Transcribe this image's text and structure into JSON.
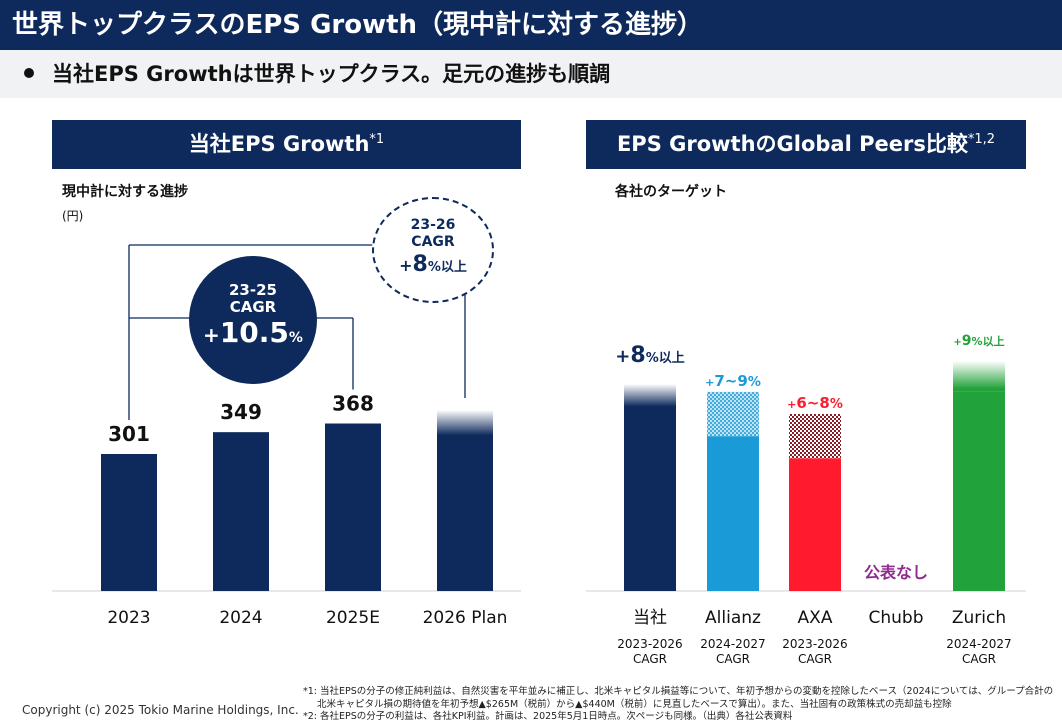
{
  "header": {
    "title": "世界トップクラスのEPS Growth（現中計に対する進捗）",
    "subtitle": "当社EPS Growthは世界トップクラス。足元の進捗も順調"
  },
  "left_panel": {
    "heading": "当社EPS Growth",
    "heading_note": "*1",
    "chart_label": "現中計に対する進捗",
    "unit": "(円)",
    "cagr_23_25": {
      "line1": "23-25",
      "line2": "CAGR",
      "prefix": "+",
      "value": "10.5",
      "suffix": "%"
    },
    "cagr_23_26": {
      "line1": "23-26",
      "line2": "CAGR",
      "prefix": "+",
      "value": "8",
      "suffix": "%以上"
    }
  },
  "right_panel": {
    "heading": "EPS GrowthのGlobal Peers比較",
    "heading_note": "*1,2",
    "chart_label": "各社のターゲット"
  },
  "colors": {
    "navy": "#0e2a5c",
    "allianz": "#1a9ad6",
    "axa": "#ff1a2e",
    "chubb_text": "#8e2b8f",
    "zurich": "#22a23a"
  },
  "chart_data": [
    {
      "type": "bar",
      "title": "",
      "categories": [
        "2023",
        "2024",
        "2025E",
        "2026 Plan"
      ],
      "values": [
        301,
        349,
        368,
        null
      ],
      "value_labels": [
        "301",
        "349",
        "368",
        ""
      ],
      "ylim": [
        0,
        460
      ],
      "plan_bar_faded": true
    },
    {
      "type": "bar",
      "title": "",
      "categories": [
        "当社",
        "Allianz",
        "AXA",
        "Chubb",
        "Zurich"
      ],
      "range_labels": [
        "+8%以上",
        "+7~9%",
        "+6~8%",
        "",
        "+9%以上"
      ],
      "value_min": [
        8,
        7,
        6,
        null,
        9
      ],
      "value_max": [
        null,
        9,
        8,
        null,
        null
      ],
      "periods": [
        "2023-2026",
        "2024-2027",
        "2023-2026",
        "",
        "2024-2027"
      ],
      "period_unit": "CAGR",
      "no_disclosure_label": "公表なし",
      "ylim": [
        0,
        11
      ]
    }
  ],
  "footer": {
    "copyright": "Copyright (c) 2025 Tokio Marine Holdings, Inc.",
    "note1_line1": "*1: 当社EPSの分子の修正純利益は、自然災害を平年並みに補正し、北米キャピタル損益等について、年初予想からの変動を控除したベース（2024については、グループ合計の",
    "note1_line2": "北米キャピタル損の期待値を年初予想▲$265M（税前）から▲$440M（税前）に見直したベースで算出）。また、当社固有の政策株式の売却益も控除",
    "note2": "*2: 各社EPSの分子の利益は、各社KPI利益。計画は、2025年5月1日時点。次ページも同様。（出典）各社公表資料"
  }
}
